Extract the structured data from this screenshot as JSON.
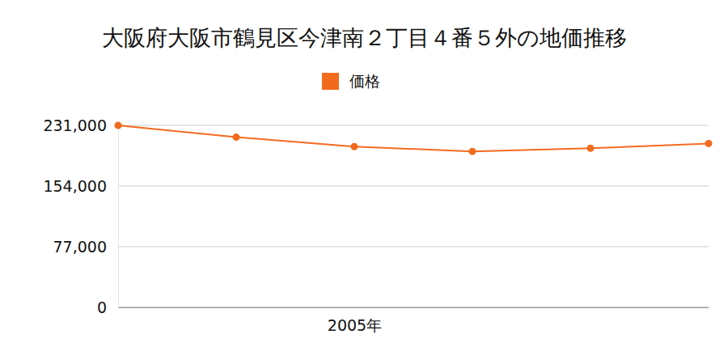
{
  "chart_data": {
    "type": "line",
    "title": "大阪府大阪市鶴見区今津南２丁目４番５外の地価推移",
    "categories": [
      null,
      null,
      "2005年",
      null,
      null,
      null
    ],
    "series": [
      {
        "name": "価格",
        "color": "#f26b1d",
        "marker": "circle",
        "line_style": "solid",
        "values": [
          231000,
          216000,
          204000,
          198000,
          202000,
          208000
        ]
      }
    ],
    "ylim": [
      0,
      231000
    ],
    "yticks": [
      0,
      {
        "value": 77000,
        "label": "77,000"
      },
      {
        "value": 154000,
        "label": "154,000"
      },
      {
        "value": 231000,
        "label": "231,000"
      }
    ],
    "grid": true,
    "legend": "top"
  }
}
